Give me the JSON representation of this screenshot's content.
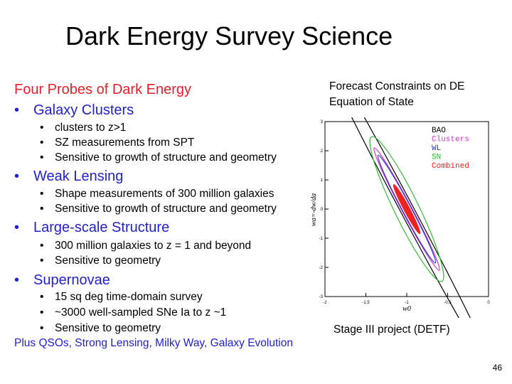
{
  "title": "Dark Energy Survey Science",
  "probes_heading": "Four Probes of Dark Energy",
  "probes": [
    {
      "name": "Galaxy Clusters",
      "items": [
        "clusters to z>1",
        "SZ measurements from SPT",
        "Sensitive to growth of structure and geometry"
      ]
    },
    {
      "name": "Weak Lensing",
      "items": [
        "Shape measurements of 300 million galaxies",
        "Sensitive to growth of structure and geometry"
      ]
    },
    {
      "name": "Large-scale Structure",
      "items": [
        "300 million galaxies to z = 1 and beyond",
        "Sensitive to geometry"
      ]
    },
    {
      "name": "Supernovae",
      "items": [
        "15 sq deg time-domain survey",
        "~3000 well-sampled SNe Ia to z ~1",
        "Sensitive to geometry"
      ]
    }
  ],
  "footer_line": "Plus QSOs, Strong Lensing, Milky Way, Galaxy Evolution",
  "forecast": {
    "title_line1": "Forecast Constraints on DE",
    "title_line2": "Equation of State",
    "caption": "Stage III project (DETF)"
  },
  "page_number": "46",
  "colors": {
    "heading_red": "#e8202a",
    "bullet_blue": "#2222cc"
  },
  "chart_data": {
    "type": "scatter",
    "xlabel": "w0",
    "ylabel": "wa=-dw/da",
    "xlim": [
      -2,
      0
    ],
    "ylim": [
      -3,
      3
    ],
    "x_ticks": [
      "-2",
      "-1.5",
      "-1",
      "-0.5",
      "0"
    ],
    "y_ticks": [
      "-3",
      "-2",
      "-1",
      "0",
      "1",
      "2",
      "3"
    ],
    "legend_position": "top-right",
    "series": [
      {
        "name": "BAO",
        "color": "#000000",
        "center": [
          -1.0,
          0.0
        ],
        "semi_major": 3.4,
        "semi_minor": 0.12,
        "angle_deg": -62
      },
      {
        "name": "Clusters",
        "color": "#cc33cc",
        "center": [
          -1.0,
          0.0
        ],
        "semi_major": 1.25,
        "semi_minor": 0.09,
        "angle_deg": -62
      },
      {
        "name": "WL",
        "color": "#3333cc",
        "center": [
          -1.0,
          0.0
        ],
        "semi_major": 1.1,
        "semi_minor": 0.08,
        "angle_deg": -62
      },
      {
        "name": "SN",
        "color": "#33bb33",
        "center": [
          -1.0,
          0.0
        ],
        "semi_major": 1.45,
        "semi_minor": 0.22,
        "angle_deg": -64
      },
      {
        "name": "Combined",
        "color": "#ee2222",
        "center": [
          -1.0,
          0.0
        ],
        "semi_major": 0.5,
        "semi_minor": 0.05,
        "angle_deg": -62
      }
    ]
  }
}
